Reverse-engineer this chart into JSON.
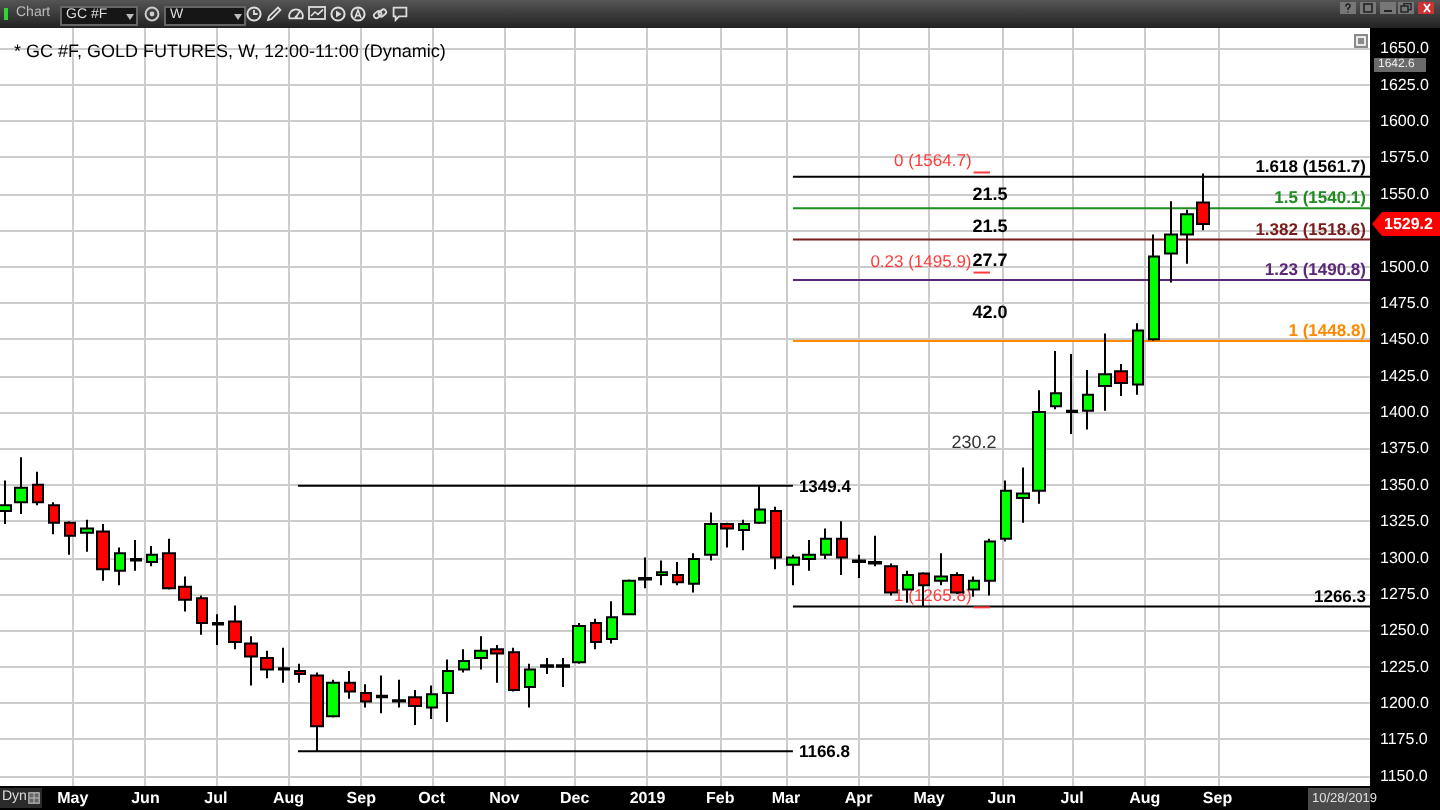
{
  "chart_data": {
    "type": "candlestick",
    "title": "* GC #F, GOLD FUTURES, W, 12:00-11:00 (Dynamic)",
    "x": [
      "2018-04-02",
      "2018-04-09",
      "2018-04-16",
      "2018-04-23",
      "2018-04-30",
      "2018-05-07",
      "2018-05-14",
      "2018-05-21",
      "2018-05-28",
      "2018-06-04",
      "2018-06-11",
      "2018-06-18",
      "2018-06-25",
      "2018-07-02",
      "2018-07-09",
      "2018-07-16",
      "2018-07-23",
      "2018-07-30",
      "2018-08-06",
      "2018-08-13",
      "2018-08-20",
      "2018-08-27",
      "2018-09-03",
      "2018-09-10",
      "2018-09-17",
      "2018-09-24",
      "2018-10-01",
      "2018-10-08",
      "2018-10-15",
      "2018-10-22",
      "2018-10-29",
      "2018-11-05",
      "2018-11-12",
      "2018-11-19",
      "2018-11-26",
      "2018-12-03",
      "2018-12-10",
      "2018-12-17",
      "2018-12-24",
      "2018-12-31",
      "2019-01-07",
      "2019-01-14",
      "2019-01-21",
      "2019-01-28",
      "2019-02-04",
      "2019-02-11",
      "2019-02-18",
      "2019-02-25",
      "2019-03-04",
      "2019-03-11",
      "2019-03-18",
      "2019-03-25",
      "2019-04-01",
      "2019-04-08",
      "2019-04-15",
      "2019-04-22",
      "2019-04-29",
      "2019-05-06",
      "2019-05-13",
      "2019-05-20",
      "2019-05-27",
      "2019-06-03",
      "2019-06-10",
      "2019-06-17",
      "2019-06-24",
      "2019-07-01",
      "2019-07-08",
      "2019-07-15",
      "2019-07-22",
      "2019-07-29",
      "2019-08-05",
      "2019-08-12",
      "2019-08-19",
      "2019-08-26"
    ],
    "ohlc": [
      [
        1332,
        1353,
        1323,
        1336
      ],
      [
        1338,
        1369,
        1330,
        1348
      ],
      [
        1350,
        1359,
        1336,
        1338
      ],
      [
        1336,
        1338,
        1316,
        1324
      ],
      [
        1324,
        1325,
        1302,
        1315
      ],
      [
        1317,
        1326,
        1304,
        1320
      ],
      [
        1318,
        1323,
        1284,
        1292
      ],
      [
        1291,
        1307,
        1281,
        1303
      ],
      [
        1298,
        1312,
        1291,
        1299
      ],
      [
        1297,
        1308,
        1294,
        1302
      ],
      [
        1303,
        1313,
        1278,
        1279
      ],
      [
        1280,
        1287,
        1263,
        1271
      ],
      [
        1272,
        1274,
        1247,
        1255
      ],
      [
        1254,
        1261,
        1240,
        1255
      ],
      [
        1256,
        1267,
        1237,
        1242
      ],
      [
        1241,
        1246,
        1212,
        1232
      ],
      [
        1231,
        1236,
        1217,
        1223
      ],
      [
        1224,
        1238,
        1214,
        1223
      ],
      [
        1222,
        1227,
        1214,
        1220
      ],
      [
        1219,
        1221,
        1166.8,
        1184
      ],
      [
        1191,
        1216,
        1190,
        1214
      ],
      [
        1214,
        1222,
        1203,
        1208
      ],
      [
        1207,
        1213,
        1197,
        1201
      ],
      [
        1205,
        1219,
        1193,
        1204
      ],
      [
        1201,
        1216,
        1197,
        1202
      ],
      [
        1204,
        1209,
        1185,
        1198
      ],
      [
        1197,
        1212,
        1189,
        1206
      ],
      [
        1207,
        1230,
        1187,
        1222
      ],
      [
        1223,
        1237,
        1221,
        1229
      ],
      [
        1231,
        1246,
        1223,
        1236
      ],
      [
        1237,
        1240,
        1214,
        1234
      ],
      [
        1235,
        1238,
        1208,
        1209
      ],
      [
        1211,
        1227,
        1197,
        1223
      ],
      [
        1226,
        1231,
        1220,
        1225
      ],
      [
        1225,
        1231,
        1211,
        1226
      ],
      [
        1228,
        1255,
        1227,
        1253
      ],
      [
        1255,
        1258,
        1237,
        1242
      ],
      [
        1244,
        1270,
        1241,
        1259
      ],
      [
        1261,
        1285,
        1261,
        1284
      ],
      [
        1285,
        1300,
        1279,
        1286
      ],
      [
        1288,
        1298,
        1281,
        1290
      ],
      [
        1288,
        1297,
        1281,
        1283
      ],
      [
        1282,
        1303,
        1276,
        1299
      ],
      [
        1302,
        1331,
        1298,
        1323
      ],
      [
        1323,
        1324,
        1307,
        1320
      ],
      [
        1319,
        1326,
        1305,
        1323
      ],
      [
        1324,
        1349.4,
        1323,
        1333
      ],
      [
        1332,
        1335,
        1292,
        1300
      ],
      [
        1295,
        1302,
        1281,
        1300
      ],
      [
        1299,
        1312,
        1291,
        1302
      ],
      [
        1302,
        1320,
        1299,
        1313
      ],
      [
        1313,
        1325,
        1288,
        1300
      ],
      [
        1298,
        1302,
        1286,
        1297
      ],
      [
        1297,
        1315,
        1294,
        1296
      ],
      [
        1294,
        1296,
        1274,
        1276
      ],
      [
        1278,
        1291,
        1269,
        1288
      ],
      [
        1289,
        1290,
        1266.3,
        1281
      ],
      [
        1284,
        1303,
        1281,
        1287
      ],
      [
        1288,
        1290,
        1275,
        1276
      ],
      [
        1278,
        1287,
        1273,
        1284
      ],
      [
        1284,
        1313,
        1274,
        1311
      ],
      [
        1313,
        1353,
        1311,
        1346
      ],
      [
        1341,
        1362,
        1324,
        1344
      ],
      [
        1346,
        1415,
        1337,
        1400
      ],
      [
        1404,
        1442,
        1402,
        1413
      ],
      [
        1401,
        1440,
        1385,
        1400
      ],
      [
        1401,
        1429,
        1388,
        1412
      ],
      [
        1418,
        1454,
        1401,
        1426
      ],
      [
        1428,
        1433,
        1411,
        1420
      ],
      [
        1419,
        1461,
        1412,
        1456
      ],
      [
        1450,
        1522,
        1449,
        1507
      ],
      [
        1509,
        1545,
        1489,
        1522
      ],
      [
        1522,
        1539,
        1502,
        1536
      ],
      [
        1544,
        1564,
        1525,
        1529.2
      ]
    ],
    "colors": [
      "#00ff00",
      "#00ff00",
      "#ff0000",
      "#ff0000",
      "#ff0000",
      "#00ff00",
      "#ff0000",
      "#00ff00",
      "#00ff00",
      "#00ff00",
      "#ff0000",
      "#ff0000",
      "#ff0000",
      "#00ff00",
      "#ff0000",
      "#ff0000",
      "#ff0000",
      "#ff0000",
      "#ff0000",
      "#ff0000",
      "#00ff00",
      "#ff0000",
      "#ff0000",
      "#ff0000",
      "#00ff00",
      "#ff0000",
      "#00ff00",
      "#00ff00",
      "#00ff00",
      "#00ff00",
      "#ff0000",
      "#ff0000",
      "#00ff00",
      "#ff0000",
      "#00ff00",
      "#00ff00",
      "#ff0000",
      "#00ff00",
      "#00ff00",
      "#00ff00",
      "#00ff00",
      "#ff0000",
      "#00ff00",
      "#00ff00",
      "#ff0000",
      "#00ff00",
      "#00ff00",
      "#ff0000",
      "#00ff00",
      "#00ff00",
      "#00ff00",
      "#ff0000",
      "#ff0000",
      "#ff0000",
      "#ff0000",
      "#00ff00",
      "#ff0000",
      "#00ff00",
      "#ff0000",
      "#00ff00",
      "#00ff00",
      "#00ff00",
      "#00ff00",
      "#00ff00",
      "#00ff00",
      "#ff0000",
      "#00ff00",
      "#00ff00",
      "#ff0000",
      "#00ff00",
      "#00ff00",
      "#00ff00",
      "#00ff00",
      "#ff0000"
    ],
    "series": [
      {
        "type": "line",
        "name": "1349.4",
        "color": "#000000",
        "x": [
          "2018-08-05",
          "2019-03-04"
        ],
        "values": [
          1349.4,
          1349.4
        ]
      },
      {
        "type": "line",
        "name": "1166.8",
        "color": "#000000",
        "x": [
          "2018-08-05",
          "2019-03-04"
        ],
        "values": [
          1166.8,
          1166.8
        ]
      },
      {
        "type": "line",
        "name": "1266.3",
        "color": "#000000",
        "x": [
          "2019-03-04",
          "2019-11-05"
        ],
        "values": [
          1266.3,
          1266.3
        ]
      },
      {
        "type": "line",
        "name": "1.618 (1561.7)",
        "color": "#000000",
        "x": [
          "2019-03-04",
          "2019-11-05"
        ],
        "values": [
          1561.7,
          1561.7
        ]
      },
      {
        "type": "line",
        "name": "1.5 (1540.1)",
        "color": "#1e8c1e",
        "x": [
          "2019-03-04",
          "2019-11-05"
        ],
        "values": [
          1540.1,
          1540.1
        ]
      },
      {
        "type": "line",
        "name": "1.382 (1518.6)",
        "color": "#7a1c1c",
        "x": [
          "2019-03-04",
          "2019-11-05"
        ],
        "values": [
          1518.6,
          1518.6
        ]
      },
      {
        "type": "line",
        "name": "1.23 (1490.8)",
        "color": "#5a2878",
        "x": [
          "2019-03-04",
          "2019-11-05"
        ],
        "values": [
          1490.8,
          1490.8
        ]
      },
      {
        "type": "line",
        "name": "1 (1448.8)",
        "color": "#ff8a00",
        "x": [
          "2019-03-04",
          "2019-11-05"
        ],
        "values": [
          1448.8,
          1448.8
        ]
      },
      {
        "type": "line",
        "name": "0 (1564.7)",
        "color": "#ff3b3b",
        "x": [
          "2019-05-20",
          "2019-05-27"
        ],
        "values": [
          1564.7,
          1564.7
        ]
      },
      {
        "type": "line",
        "name": "0.23 (1495.9)",
        "color": "#ff3b3b",
        "x": [
          "2019-05-20",
          "2019-05-27"
        ],
        "values": [
          1495.9,
          1495.9
        ]
      },
      {
        "type": "line",
        "name": "1 (1265.8)",
        "color": "#ff3b3b",
        "x": [
          "2019-05-20",
          "2019-05-27"
        ],
        "values": [
          1265.8,
          1265.8
        ]
      }
    ],
    "xlim": [
      "2018-03-31",
      "2019-11-05"
    ],
    "xticks": [
      {
        "value": "2018-05-01",
        "label": "May"
      },
      {
        "value": "2018-06-01",
        "label": "Jun"
      },
      {
        "value": "2018-07-01",
        "label": "Jul"
      },
      {
        "value": "2018-08-01",
        "label": "Aug"
      },
      {
        "value": "2018-09-01",
        "label": "Sep"
      },
      {
        "value": "2018-10-01",
        "label": "Oct"
      },
      {
        "value": "2018-11-01",
        "label": "Nov"
      },
      {
        "value": "2018-12-01",
        "label": "Dec"
      },
      {
        "value": "2019-01-01",
        "label": "2019"
      },
      {
        "value": "2019-02-01",
        "label": "Feb"
      },
      {
        "value": "2019-03-01",
        "label": "Mar"
      },
      {
        "value": "2019-04-01",
        "label": "Apr"
      },
      {
        "value": "2019-05-01",
        "label": "May"
      },
      {
        "value": "2019-06-01",
        "label": "Jun"
      },
      {
        "value": "2019-07-01",
        "label": "Jul"
      },
      {
        "value": "2019-08-01",
        "label": "Aug"
      },
      {
        "value": "2019-09-01",
        "label": "Sep"
      }
    ],
    "ylim": [
      1143,
      1664
    ],
    "yticks": [
      {
        "value": 1150,
        "label": "1150.0"
      },
      {
        "value": 1175,
        "label": "1175.0"
      },
      {
        "value": 1200,
        "label": "1200.0"
      },
      {
        "value": 1225,
        "label": "1225.0"
      },
      {
        "value": 1250,
        "label": "1250.0"
      },
      {
        "value": 1275,
        "label": "1275.0"
      },
      {
        "value": 1300,
        "label": "1300.0"
      },
      {
        "value": 1325,
        "label": "1325.0"
      },
      {
        "value": 1350,
        "label": "1350.0"
      },
      {
        "value": 1375,
        "label": "1375.0"
      },
      {
        "value": 1400,
        "label": "1400.0"
      },
      {
        "value": 1425,
        "label": "1425.0"
      },
      {
        "value": 1450,
        "label": "1450.0"
      },
      {
        "value": 1475,
        "label": "1475.0"
      },
      {
        "value": 1500,
        "label": "1500.0"
      },
      {
        "value": 1525,
        "label": null
      },
      {
        "value": 1550,
        "label": "1550.0"
      },
      {
        "value": 1575,
        "label": "1575.0"
      },
      {
        "value": 1600,
        "label": "1600.0"
      },
      {
        "value": 1625,
        "label": "1625.0"
      },
      {
        "value": 1650,
        "label": "1650.0"
      }
    ],
    "grid": true,
    "annotations": [
      "Chart",
      "GC #F",
      "W",
      "Dyn",
      "10/28/2019",
      "1642.6",
      "1529.2",
      "230.2",
      "21.5",
      "21.5",
      "27.7",
      "42.0"
    ]
  }
}
